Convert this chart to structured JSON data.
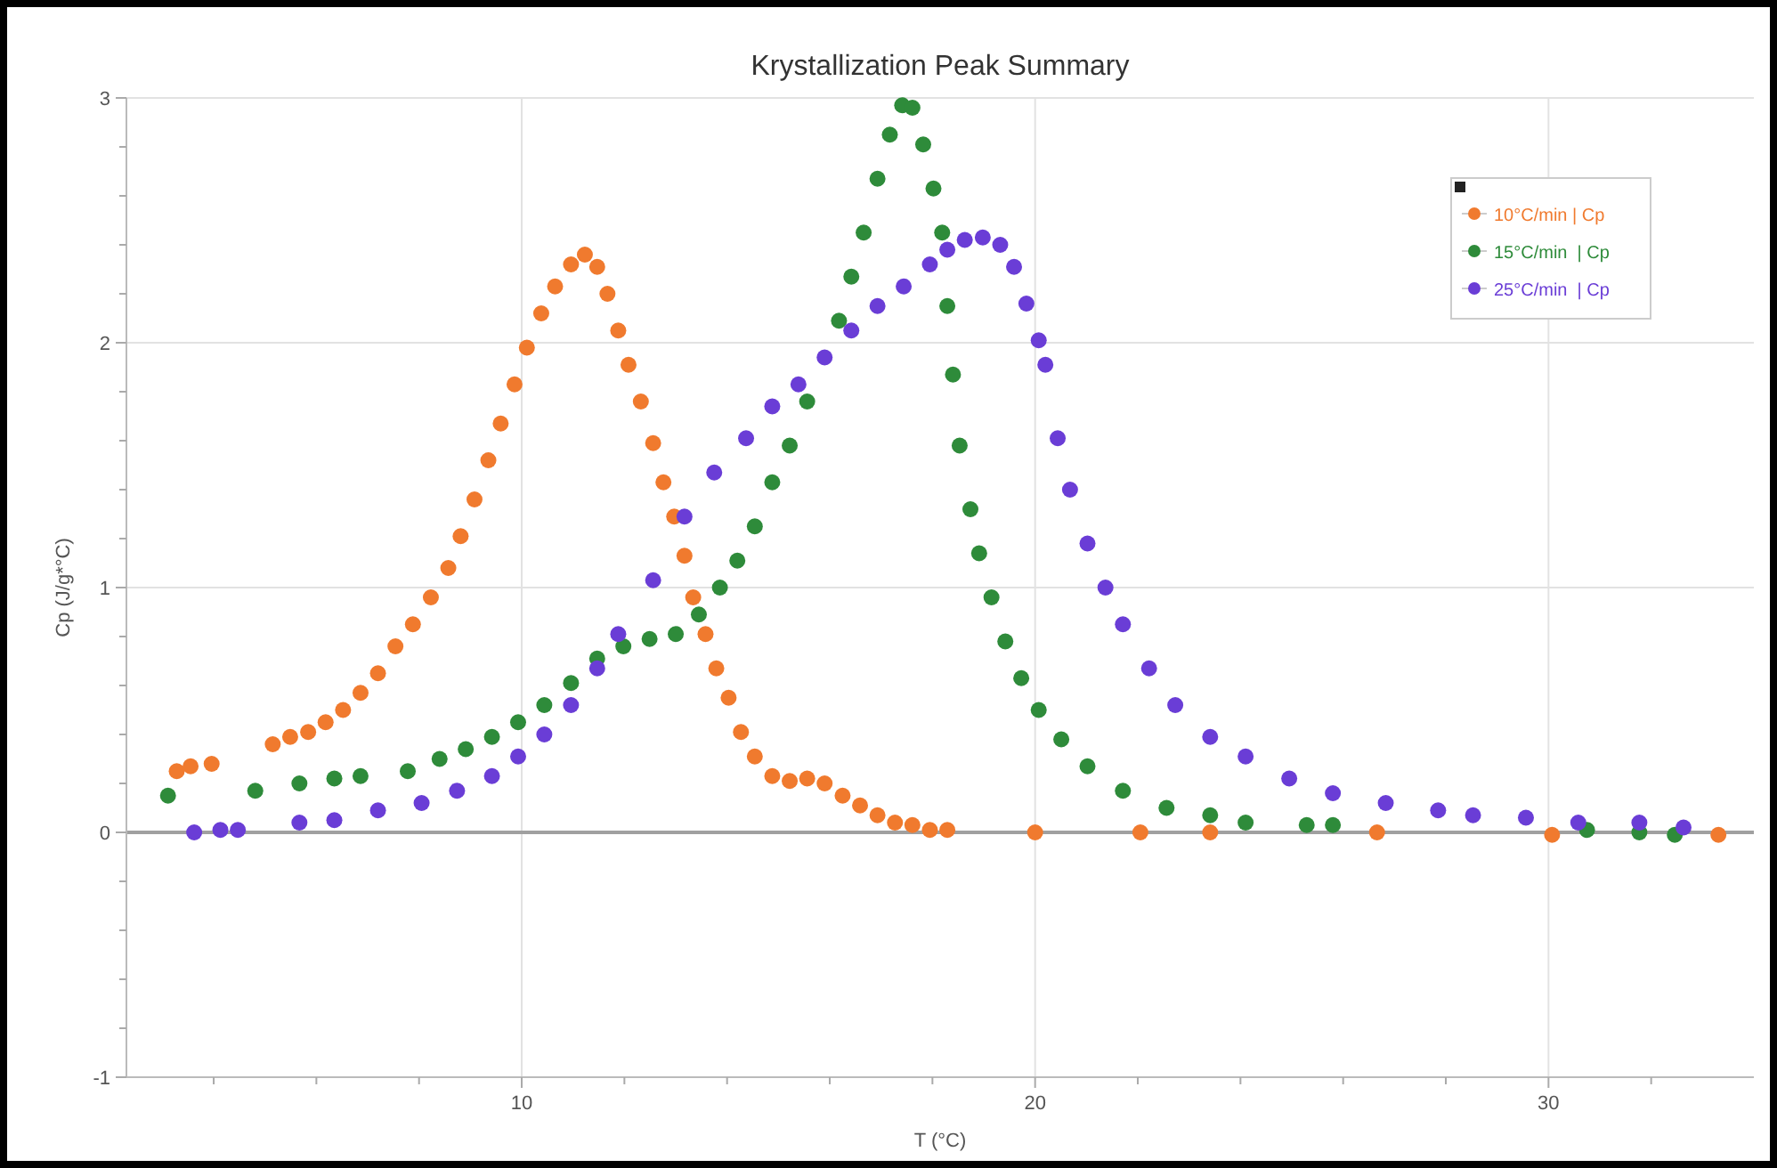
{
  "chart_data": {
    "type": "scatter",
    "title": "Krystallization Peak Summary",
    "xlabel": "T (°C)",
    "ylabel": "Cp (J/g*°C)",
    "xlim": [
      2.3,
      34
    ],
    "ylim": [
      -1,
      3
    ],
    "xticks": [
      {
        "value": 4,
        "label": null
      },
      {
        "value": 6,
        "label": null
      },
      {
        "value": 8,
        "label": null
      },
      10,
      {
        "value": 12,
        "label": null
      },
      {
        "value": 14,
        "label": null
      },
      {
        "value": 16,
        "label": null
      },
      {
        "value": 18,
        "label": null
      },
      20,
      {
        "value": 22,
        "label": null
      },
      {
        "value": 24,
        "label": null
      },
      {
        "value": 26,
        "label": null
      },
      {
        "value": 28,
        "label": null
      },
      30,
      {
        "value": 32,
        "label": null
      }
    ],
    "yticks": [
      -1,
      {
        "value": -0.8,
        "label": null
      },
      {
        "value": -0.6,
        "label": null
      },
      {
        "value": -0.4,
        "label": null
      },
      {
        "value": -0.2,
        "label": null
      },
      0,
      {
        "value": 0.2,
        "label": null
      },
      {
        "value": 0.4,
        "label": null
      },
      {
        "value": 0.6,
        "label": null
      },
      {
        "value": 0.8,
        "label": null
      },
      1,
      {
        "value": 1.2,
        "label": null
      },
      {
        "value": 1.4,
        "label": null
      },
      {
        "value": 1.6,
        "label": null
      },
      {
        "value": 1.8,
        "label": null
      },
      2,
      {
        "value": 2.2,
        "label": null
      },
      {
        "value": 2.4,
        "label": null
      },
      {
        "value": 2.6,
        "label": null
      },
      {
        "value": 2.8,
        "label": null
      },
      3
    ],
    "grid": true,
    "legend": "top right",
    "marker": "circle",
    "ref_lines": [
      {
        "axis": "y",
        "value": 0,
        "color": "#a0a0a0"
      }
    ],
    "series": [
      {
        "name": "10°C/min | Cp",
        "color": "#f07a2e",
        "x": [
          3.28,
          3.55,
          3.96,
          5.15,
          5.49,
          5.84,
          6.18,
          6.52,
          6.86,
          7.2,
          7.54,
          7.88,
          8.23,
          8.57,
          8.81,
          9.08,
          9.35,
          9.59,
          9.86,
          10.1,
          10.38,
          10.65,
          10.96,
          11.23,
          11.47,
          11.67,
          11.88,
          12.08,
          12.32,
          12.56,
          12.76,
          12.97,
          13.17,
          13.34,
          13.58,
          13.79,
          14.03,
          14.27,
          14.54,
          14.88,
          15.22,
          15.56,
          15.9,
          16.25,
          16.59,
          16.93,
          17.27,
          17.61,
          17.95,
          18.29,
          20,
          22.05,
          23.41,
          26.66,
          30.07,
          33.31
        ],
        "values": [
          0.25,
          0.27,
          0.28,
          0.36,
          0.39,
          0.41,
          0.45,
          0.5,
          0.57,
          0.65,
          0.76,
          0.85,
          0.96,
          1.08,
          1.21,
          1.36,
          1.52,
          1.67,
          1.83,
          1.98,
          2.12,
          2.23,
          2.32,
          2.36,
          2.31,
          2.2,
          2.05,
          1.91,
          1.76,
          1.59,
          1.43,
          1.29,
          1.13,
          0.96,
          0.81,
          0.67,
          0.55,
          0.41,
          0.31,
          0.23,
          0.21,
          0.22,
          0.2,
          0.15,
          0.11,
          0.07,
          0.04,
          0.03,
          0.01,
          0.01,
          0,
          0,
          0,
          0,
          -0.01,
          -0.01
        ]
      },
      {
        "name": "15°C/min  | Cp",
        "color": "#2e8b3a",
        "x": [
          3.11,
          4.81,
          5.67,
          6.35,
          6.86,
          7.78,
          8.4,
          8.91,
          9.42,
          9.93,
          10.44,
          10.96,
          11.47,
          11.98,
          12.49,
          13,
          13.45,
          13.86,
          14.2,
          14.54,
          14.88,
          15.22,
          15.56,
          16.18,
          16.42,
          16.66,
          16.93,
          17.17,
          17.41,
          17.61,
          17.82,
          18.02,
          18.19,
          18.29,
          18.4,
          18.53,
          18.74,
          18.91,
          19.15,
          19.42,
          19.73,
          20.07,
          20.51,
          21.02,
          21.71,
          22.56,
          23.41,
          24.1,
          25.29,
          25.8,
          30.75,
          31.77,
          32.46
        ],
        "values": [
          0.15,
          0.17,
          0.2,
          0.22,
          0.23,
          0.25,
          0.3,
          0.34,
          0.39,
          0.45,
          0.52,
          0.61,
          0.71,
          0.76,
          0.79,
          0.81,
          0.89,
          1,
          1.11,
          1.25,
          1.43,
          1.58,
          1.76,
          2.09,
          2.27,
          2.45,
          2.67,
          2.85,
          2.97,
          2.96,
          2.81,
          2.63,
          2.45,
          2.15,
          1.87,
          1.58,
          1.32,
          1.14,
          0.96,
          0.78,
          0.63,
          0.5,
          0.38,
          0.27,
          0.17,
          0.1,
          0.07,
          0.04,
          0.03,
          0.03,
          0.01,
          0,
          -0.01
        ]
      },
      {
        "name": "25°C/min  | Cp",
        "color": "#6a3dd6",
        "x": [
          3.62,
          4.13,
          4.47,
          5.67,
          6.35,
          7.2,
          8.05,
          8.74,
          9.42,
          9.93,
          10.44,
          10.96,
          11.47,
          11.88,
          12.56,
          13.17,
          13.75,
          14.37,
          14.88,
          15.39,
          15.9,
          16.42,
          16.93,
          17.44,
          17.95,
          18.29,
          18.63,
          18.98,
          19.32,
          19.59,
          19.83,
          20.07,
          20.2,
          20.44,
          20.68,
          21.02,
          21.37,
          21.71,
          22.22,
          22.73,
          23.41,
          24.1,
          24.95,
          25.8,
          26.83,
          27.85,
          28.53,
          29.56,
          30.58,
          31.77,
          32.63
        ],
        "values": [
          0,
          0.01,
          0.01,
          0.04,
          0.05,
          0.09,
          0.12,
          0.17,
          0.23,
          0.31,
          0.4,
          0.52,
          0.67,
          0.81,
          1.03,
          1.29,
          1.47,
          1.61,
          1.74,
          1.83,
          1.94,
          2.05,
          2.15,
          2.23,
          2.32,
          2.38,
          2.42,
          2.43,
          2.4,
          2.31,
          2.16,
          2.01,
          1.91,
          1.61,
          1.4,
          1.18,
          1,
          0.85,
          0.67,
          0.52,
          0.39,
          0.31,
          0.22,
          0.16,
          0.12,
          0.09,
          0.07,
          0.06,
          0.04,
          0.04,
          0.02
        ]
      }
    ]
  }
}
